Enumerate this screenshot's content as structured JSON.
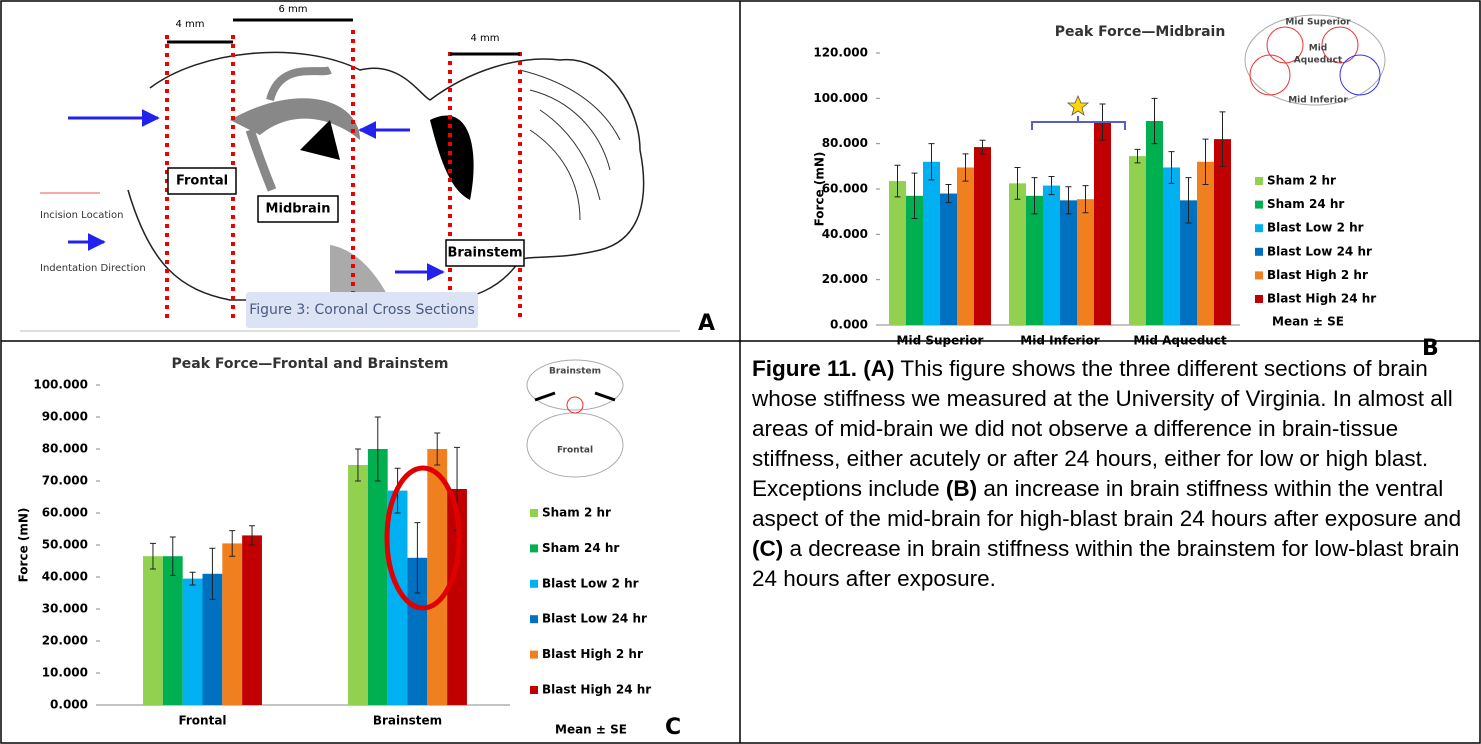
{
  "panel_a": {
    "dims": [
      "4 mm",
      "6 mm",
      "4 mm"
    ],
    "boxes": [
      "Frontal",
      "Midbrain",
      "Brainstem"
    ],
    "legend": [
      "Incision Location",
      "Indentation Direction"
    ],
    "caption": "Figure 3: Coronal Cross Sections"
  },
  "panel_letters": [
    "A",
    "B",
    "C"
  ],
  "chart_data": [
    {
      "type": "bar",
      "title": "Peak Force—Midbrain",
      "y_label": "Force (mN)",
      "annotation": "Mean ± SE",
      "inset_labels": [
        "Mid Superior",
        "Mid",
        "Aqueduct",
        "Mid Inferior"
      ],
      "categories": [
        "Mid Superior",
        "Mid Inferior",
        "Mid Aqueduct"
      ],
      "ylim": [
        0,
        120
      ],
      "yticks": [
        {
          "value": 0,
          "label": "0.000"
        },
        {
          "value": 20,
          "label": "20.000"
        },
        {
          "value": 40,
          "label": "40.000"
        },
        {
          "value": 60,
          "label": "60.000"
        },
        {
          "value": 80,
          "label": "80.000"
        },
        {
          "value": 100,
          "label": "100.000"
        },
        {
          "value": 120,
          "label": "120.000"
        }
      ],
      "series": [
        {
          "name": "Sham 2 hr",
          "color": "#92d050",
          "values": [
            63.5,
            62.5,
            74.5
          ],
          "errors": [
            7,
            7,
            3
          ]
        },
        {
          "name": "Sham 24 hr",
          "color": "#00b050",
          "values": [
            57,
            57,
            90
          ],
          "errors": [
            10,
            8,
            10
          ]
        },
        {
          "name": "Blast Low 2 hr",
          "color": "#00b0f0",
          "values": [
            72,
            61.5,
            69.5
          ],
          "errors": [
            8,
            4,
            7
          ]
        },
        {
          "name": "Blast Low 24 hr",
          "color": "#0070c0",
          "values": [
            58,
            55,
            55
          ],
          "errors": [
            4,
            6,
            10
          ]
        },
        {
          "name": "Blast High 2 hr",
          "color": "#f07f1f",
          "values": [
            69.5,
            55.5,
            72
          ],
          "errors": [
            6,
            6,
            10
          ]
        },
        {
          "name": "Blast High 24 hr",
          "color": "#c00000",
          "values": [
            78.5,
            89.5,
            82
          ],
          "errors": [
            3,
            8,
            12
          ]
        }
      ]
    },
    {
      "type": "bar",
      "title": "Peak Force—Frontal and Brainstem",
      "y_label": "Force (mN)",
      "annotation": "Mean ± SE",
      "inset_labels": [
        "Brainstem",
        "Frontal"
      ],
      "categories": [
        "Frontal",
        "Brainstem"
      ],
      "ylim": [
        0,
        100
      ],
      "yticks": [
        {
          "value": 0,
          "label": "0.000"
        },
        {
          "value": 10,
          "label": "10.000"
        },
        {
          "value": 20,
          "label": "20.000"
        },
        {
          "value": 30,
          "label": "30.000"
        },
        {
          "value": 40,
          "label": "40.000"
        },
        {
          "value": 50,
          "label": "50.000"
        },
        {
          "value": 60,
          "label": "60.000"
        },
        {
          "value": 70,
          "label": "70.000"
        },
        {
          "value": 80,
          "label": "80.000"
        },
        {
          "value": 90,
          "label": "90.000"
        },
        {
          "value": 100,
          "label": "100.000"
        }
      ],
      "series": [
        {
          "name": "Sham 2 hr",
          "color": "#92d050",
          "values": [
            46.5,
            75
          ],
          "errors": [
            4,
            5
          ]
        },
        {
          "name": "Sham 24 hr",
          "color": "#00b050",
          "values": [
            46.5,
            80
          ],
          "errors": [
            6,
            10
          ]
        },
        {
          "name": "Blast Low 2 hr",
          "color": "#00b0f0",
          "values": [
            39.5,
            67
          ],
          "errors": [
            2,
            7
          ]
        },
        {
          "name": "Blast Low 24 hr",
          "color": "#0070c0",
          "values": [
            41,
            46
          ],
          "errors": [
            8,
            11
          ]
        },
        {
          "name": "Blast High 2 hr",
          "color": "#f07f1f",
          "values": [
            50.5,
            80
          ],
          "errors": [
            4,
            5
          ]
        },
        {
          "name": "Blast High 24 hr",
          "color": "#c00000",
          "values": [
            53,
            67.5
          ],
          "errors": [
            3,
            13
          ]
        }
      ]
    }
  ],
  "caption": [
    "Figure 11.",
    " (A)",
    " This figure shows the three different sections of brain whose stiffness we measured at the University of Virginia. In almost all areas of mid-brain we did not observe a difference in brain-tissue stiffness, either acutely or after 24 hours, either for low or high blast. Exceptions include ",
    "(B)",
    " an increase in brain stiffness within the ventral aspect of the mid-brain for high-blast brain 24 hours after exposure and ",
    "(C)",
    " a decrease in brain stiffness within the brainstem for low-blast brain 24 hours after exposure."
  ]
}
